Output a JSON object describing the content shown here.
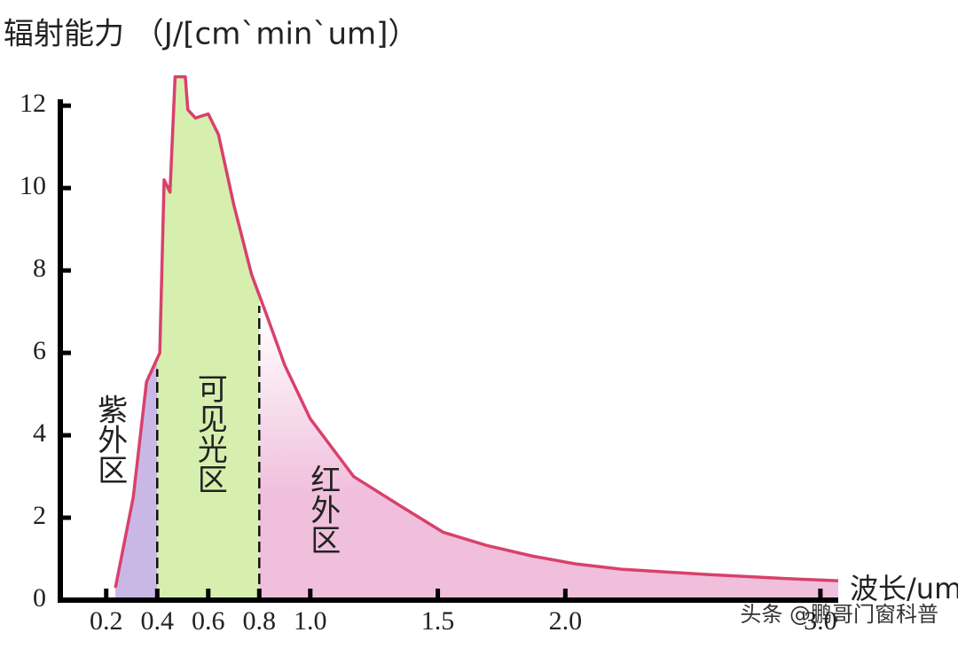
{
  "chart_data": {
    "type": "line",
    "title": "辐射能力 （J/[cm`min`um]）",
    "x_label": "波长/um",
    "watermark": "头条 @鹏哥门窗科普",
    "x": [
      0.236,
      0.306,
      0.358,
      0.41,
      0.427,
      0.45,
      0.47,
      0.51,
      0.52,
      0.55,
      0.6,
      0.64,
      0.7,
      0.77,
      0.83,
      0.9,
      1.0,
      1.17,
      1.35,
      1.52,
      1.69,
      1.87,
      2.04,
      2.22,
      2.56,
      2.91,
      3.07
    ],
    "series": [
      {
        "color": "#d8416b",
        "values": [
          0.3,
          2.5,
          5.3,
          6.0,
          10.2,
          9.9,
          12.7,
          12.7,
          11.9,
          11.7,
          11.8,
          11.3,
          9.6,
          7.9,
          6.9,
          5.7,
          4.4,
          3.0,
          2.3,
          1.65,
          1.33,
          1.07,
          0.88,
          0.75,
          0.62,
          0.51,
          0.47
        ]
      }
    ],
    "regions": [
      {
        "name": "紫外区",
        "to": 0.4,
        "color": "#c9b8e6"
      },
      {
        "name": "可见光区",
        "from": 0.4,
        "to": 0.8,
        "color": "#d6efae"
      },
      {
        "name": "红外区",
        "from": 0.8,
        "color": "#f0bfdc"
      }
    ],
    "xlim": [
      0.02,
      3.07
    ],
    "xticks": [
      0.2,
      0.4,
      0.6,
      0.8,
      {
        "value": 1.0,
        "label": "1.0"
      },
      1.5,
      {
        "value": 2.0,
        "label": "2.0"
      },
      {
        "value": 3.0,
        "label": "3.0"
      }
    ],
    "ylim": [
      0,
      12.8
    ],
    "yticks": [
      0,
      2,
      4,
      6,
      8,
      10,
      12
    ]
  }
}
